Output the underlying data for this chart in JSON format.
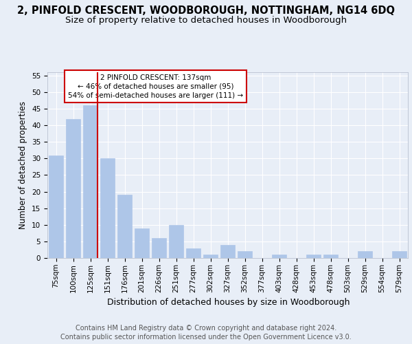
{
  "title": "2, PINFOLD CRESCENT, WOODBOROUGH, NOTTINGHAM, NG14 6DQ",
  "subtitle": "Size of property relative to detached houses in Woodborough",
  "xlabel": "Distribution of detached houses by size in Woodborough",
  "ylabel": "Number of detached properties",
  "categories": [
    "75sqm",
    "100sqm",
    "125sqm",
    "151sqm",
    "176sqm",
    "201sqm",
    "226sqm",
    "251sqm",
    "277sqm",
    "302sqm",
    "327sqm",
    "352sqm",
    "377sqm",
    "403sqm",
    "428sqm",
    "453sqm",
    "478sqm",
    "503sqm",
    "529sqm",
    "554sqm",
    "579sqm"
  ],
  "values": [
    31,
    42,
    46,
    30,
    19,
    9,
    6,
    10,
    3,
    1,
    4,
    2,
    0,
    1,
    0,
    1,
    1,
    0,
    2,
    0,
    2
  ],
  "bar_color": "#aec6e8",
  "bar_edgecolor": "#aec6e8",
  "property_line_color": "#cc0000",
  "annotation_text": "2 PINFOLD CRESCENT: 137sqm\n← 46% of detached houses are smaller (95)\n54% of semi-detached houses are larger (111) →",
  "annotation_box_color": "#ffffff",
  "annotation_box_edgecolor": "#cc0000",
  "ylim": [
    0,
    56
  ],
  "yticks": [
    0,
    5,
    10,
    15,
    20,
    25,
    30,
    35,
    40,
    45,
    50,
    55
  ],
  "background_color": "#e8eef7",
  "plot_background_color": "#e8eef7",
  "grid_color": "#ffffff",
  "footer": "Contains HM Land Registry data © Crown copyright and database right 2024.\nContains public sector information licensed under the Open Government Licence v3.0.",
  "title_fontsize": 10.5,
  "subtitle_fontsize": 9.5,
  "xlabel_fontsize": 9,
  "ylabel_fontsize": 8.5,
  "tick_fontsize": 7.5,
  "footer_fontsize": 7
}
